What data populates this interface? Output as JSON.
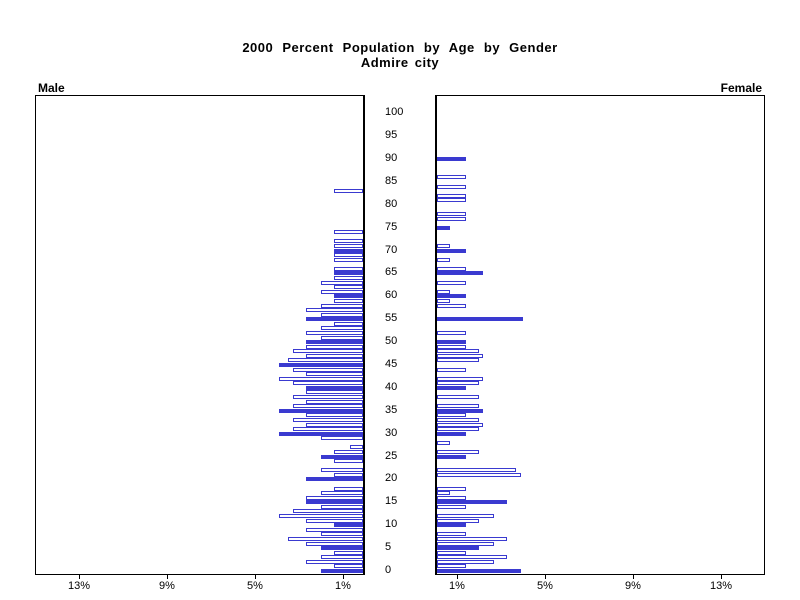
{
  "title": {
    "line1": "2000 Percent Population by Age by Gender",
    "line2": "Admire city"
  },
  "panels": {
    "male_label": "Male",
    "female_label": "Female"
  },
  "axis": {
    "male_ticks": [
      "13%",
      "9%",
      "5%",
      "1%"
    ],
    "male_tick_values": [
      13,
      9,
      5,
      1
    ],
    "female_ticks": [
      "1%",
      "5%",
      "9%",
      "13%"
    ],
    "female_tick_values": [
      1,
      5,
      9,
      13
    ],
    "age_tick_labels": [
      "100",
      "95",
      "90",
      "85",
      "80",
      "75",
      "70",
      "65",
      "60",
      "55",
      "50",
      "45",
      "40",
      "35",
      "30",
      "25",
      "20",
      "15",
      "10",
      "5",
      "0"
    ],
    "age_tick_values": [
      100,
      95,
      90,
      85,
      80,
      75,
      70,
      65,
      60,
      55,
      50,
      45,
      40,
      35,
      30,
      25,
      20,
      15,
      10,
      5,
      0
    ]
  },
  "colors": {
    "bar": "#3a3ad0",
    "axis": "#000000",
    "background": "#ffffff"
  },
  "chart_data": {
    "type": "bar",
    "subtype": "population-pyramid",
    "title": "2000 Percent Population by Age by Gender",
    "subtitle": "Admire city",
    "x_unit": "percent of population",
    "xlim_each_side": [
      0,
      15
    ],
    "age_axis_range": [
      0,
      104
    ],
    "bar_per": "single year of age",
    "filled_rule": "bars at ages divisible by 5 are solid filled; others are white with blue outline",
    "legend_position": "none",
    "grid": false,
    "series": [
      {
        "name": "Male",
        "side": "left",
        "points": [
          [
            0,
            1.9
          ],
          [
            1,
            1.3
          ],
          [
            2,
            2.6
          ],
          [
            3,
            1.9
          ],
          [
            4,
            1.3
          ],
          [
            5,
            1.9
          ],
          [
            6,
            2.6
          ],
          [
            7,
            3.4
          ],
          [
            8,
            1.9
          ],
          [
            9,
            2.6
          ],
          [
            10,
            1.3
          ],
          [
            11,
            2.6
          ],
          [
            12,
            3.8
          ],
          [
            13,
            3.2
          ],
          [
            14,
            1.9
          ],
          [
            15,
            2.6
          ],
          [
            16,
            2.6
          ],
          [
            17,
            1.9
          ],
          [
            18,
            1.3
          ],
          [
            20,
            2.6
          ],
          [
            21,
            1.3
          ],
          [
            22,
            1.9
          ],
          [
            24,
            1.3
          ],
          [
            25,
            1.9
          ],
          [
            26,
            1.3
          ],
          [
            27,
            0.6
          ],
          [
            29,
            1.9
          ],
          [
            30,
            3.8
          ],
          [
            31,
            3.2
          ],
          [
            32,
            2.6
          ],
          [
            33,
            3.2
          ],
          [
            34,
            2.6
          ],
          [
            35,
            3.8
          ],
          [
            36,
            3.2
          ],
          [
            37,
            2.6
          ],
          [
            38,
            3.2
          ],
          [
            39,
            2.6
          ],
          [
            40,
            2.6
          ],
          [
            41,
            3.2
          ],
          [
            42,
            3.8
          ],
          [
            43,
            2.6
          ],
          [
            44,
            3.2
          ],
          [
            45,
            3.8
          ],
          [
            46,
            3.4
          ],
          [
            47,
            2.6
          ],
          [
            48,
            3.2
          ],
          [
            49,
            2.6
          ],
          [
            50,
            2.6
          ],
          [
            51,
            1.9
          ],
          [
            52,
            2.6
          ],
          [
            53,
            1.9
          ],
          [
            54,
            1.3
          ],
          [
            55,
            2.6
          ],
          [
            56,
            1.9
          ],
          [
            57,
            2.6
          ],
          [
            58,
            1.9
          ],
          [
            59,
            1.3
          ],
          [
            60,
            1.3
          ],
          [
            61,
            1.9
          ],
          [
            62,
            1.3
          ],
          [
            63,
            1.9
          ],
          [
            64,
            1.3
          ],
          [
            65,
            1.3
          ],
          [
            66,
            1.3
          ],
          [
            68,
            1.3
          ],
          [
            69,
            1.3
          ],
          [
            70,
            1.3
          ],
          [
            71,
            1.3
          ],
          [
            72,
            1.3
          ],
          [
            74,
            1.3
          ],
          [
            83,
            1.3
          ]
        ]
      },
      {
        "name": "Female",
        "side": "right",
        "points": [
          [
            0,
            3.8
          ],
          [
            1,
            1.3
          ],
          [
            2,
            2.6
          ],
          [
            3,
            3.2
          ],
          [
            4,
            1.3
          ],
          [
            5,
            1.9
          ],
          [
            6,
            2.6
          ],
          [
            7,
            3.2
          ],
          [
            8,
            1.3
          ],
          [
            10,
            1.3
          ],
          [
            11,
            1.9
          ],
          [
            12,
            2.6
          ],
          [
            14,
            1.3
          ],
          [
            15,
            3.2
          ],
          [
            16,
            1.3
          ],
          [
            17,
            0.6
          ],
          [
            18,
            1.3
          ],
          [
            21,
            3.8
          ],
          [
            22,
            3.6
          ],
          [
            25,
            1.3
          ],
          [
            26,
            1.9
          ],
          [
            28,
            0.6
          ],
          [
            30,
            1.3
          ],
          [
            31,
            1.9
          ],
          [
            32,
            2.1
          ],
          [
            33,
            1.9
          ],
          [
            34,
            1.3
          ],
          [
            35,
            2.1
          ],
          [
            36,
            1.9
          ],
          [
            38,
            1.9
          ],
          [
            40,
            1.3
          ],
          [
            41,
            1.9
          ],
          [
            42,
            2.1
          ],
          [
            44,
            1.3
          ],
          [
            46,
            1.9
          ],
          [
            47,
            2.1
          ],
          [
            48,
            1.9
          ],
          [
            49,
            1.3
          ],
          [
            50,
            1.3
          ],
          [
            52,
            1.3
          ],
          [
            55,
            3.9
          ],
          [
            58,
            1.3
          ],
          [
            59,
            0.6
          ],
          [
            60,
            1.3
          ],
          [
            61,
            0.6
          ],
          [
            63,
            1.3
          ],
          [
            65,
            2.1
          ],
          [
            66,
            1.3
          ],
          [
            68,
            0.6
          ],
          [
            70,
            1.3
          ],
          [
            71,
            0.6
          ],
          [
            75,
            0.6
          ],
          [
            77,
            1.3
          ],
          [
            78,
            1.3
          ],
          [
            81,
            1.3
          ],
          [
            82,
            1.3
          ],
          [
            84,
            1.3
          ],
          [
            86,
            1.3
          ],
          [
            90,
            1.3
          ]
        ]
      }
    ]
  }
}
